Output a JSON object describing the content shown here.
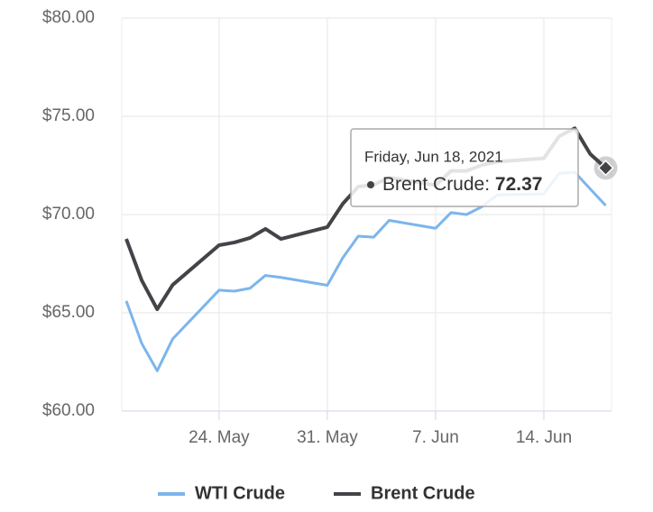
{
  "chart_data": {
    "type": "line",
    "x": [
      "2021-05-18",
      "2021-05-19",
      "2021-05-20",
      "2021-05-21",
      "2021-05-24",
      "2021-05-25",
      "2021-05-26",
      "2021-05-27",
      "2021-05-28",
      "2021-05-31",
      "2021-06-01",
      "2021-06-02",
      "2021-06-03",
      "2021-06-04",
      "2021-06-07",
      "2021-06-08",
      "2021-06-09",
      "2021-06-10",
      "2021-06-11",
      "2021-06-14",
      "2021-06-15",
      "2021-06-16",
      "2021-06-17",
      "2021-06-18"
    ],
    "series": [
      {
        "name": "WTI Crude",
        "color": "#7cb5ec",
        "values": [
          65.6,
          63.44,
          62.05,
          63.67,
          66.15,
          66.1,
          66.25,
          66.9,
          66.8,
          66.4,
          67.8,
          68.9,
          68.85,
          69.7,
          69.3,
          70.1,
          70.0,
          70.4,
          71.0,
          71.05,
          72.1,
          72.15,
          71.3,
          70.46
        ]
      },
      {
        "name": "Brent Crude",
        "color": "#434348",
        "values": [
          68.76,
          66.65,
          65.18,
          66.42,
          68.44,
          68.58,
          68.81,
          69.27,
          68.76,
          69.36,
          70.55,
          71.42,
          71.51,
          71.88,
          71.49,
          72.22,
          72.22,
          72.52,
          72.69,
          72.86,
          73.99,
          74.39,
          73.08,
          72.37
        ]
      }
    ],
    "xlim": [
      "2021-05-17T17:00",
      "2021-06-18T09:00"
    ],
    "xticks": [
      {
        "value": "2021-05-24",
        "label": "24. May"
      },
      {
        "value": "2021-05-31",
        "label": "31. May"
      },
      {
        "value": "2021-06-07",
        "label": "7. Jun"
      },
      {
        "value": "2021-06-14",
        "label": "14. Jun"
      }
    ],
    "ylim": [
      60,
      80
    ],
    "yticks": [
      {
        "value": 60,
        "label": "$60.00"
      },
      {
        "value": 65,
        "label": "$65.00"
      },
      {
        "value": 70,
        "label": "$70.00"
      },
      {
        "value": 75,
        "label": "$75.00"
      },
      {
        "value": 80,
        "label": "$80.00"
      }
    ],
    "grid": true,
    "legend": "bottom",
    "tooltip": {
      "header": "Friday, Jun 18, 2021"
    }
  }
}
